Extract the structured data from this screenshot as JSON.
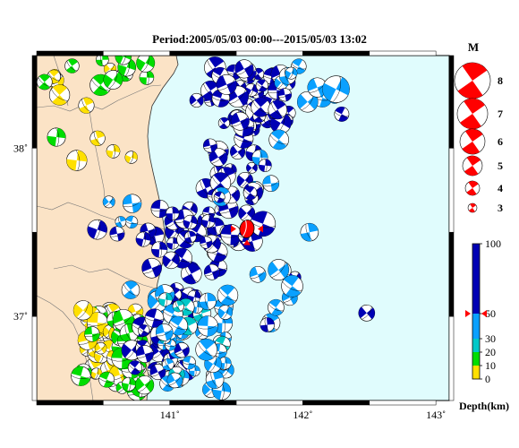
{
  "title": "Period:2005/05/03 00:00---2015/05/03 13:02",
  "axes": {
    "x_ticks": [
      {
        "label": "141˚",
        "lon": 141.0
      },
      {
        "label": "142˚",
        "lon": 142.0
      },
      {
        "label": "143˚",
        "lon": 143.0
      }
    ],
    "y_ticks": [
      {
        "label": "38˚",
        "lat": 38.0
      },
      {
        "label": "37˚",
        "lat": 37.0
      }
    ]
  },
  "map_extent": {
    "lon_min": 140.0,
    "lon_max": 143.1,
    "lat_min": 36.5,
    "lat_max": 38.55
  },
  "colors": {
    "land": "#fbe3c6",
    "sea": "#e0fcfd",
    "depth_0_10": "#ffe000",
    "depth_10_20": "#00dd00",
    "depth_20_30": "#00c8c8",
    "depth_30_50": "#0aa0ff",
    "depth_50_100": "#0000b4",
    "highlight": "#ff0000"
  },
  "magnitude_legend": {
    "title": "M",
    "items": [
      {
        "label": "8"
      },
      {
        "label": "7"
      },
      {
        "label": "6"
      },
      {
        "label": "5"
      },
      {
        "label": "4"
      },
      {
        "label": "3"
      }
    ]
  },
  "depth_legend": {
    "title": "Depth(km)",
    "ticks": [
      {
        "label": "100",
        "value": 100
      },
      {
        "label": "50",
        "value": 50
      },
      {
        "label": "30",
        "value": 30
      },
      {
        "label": "20",
        "value": 20
      },
      {
        "label": "10",
        "value": 10
      },
      {
        "label": "0",
        "value": 0
      }
    ],
    "marker_value": 50
  },
  "highlight_event": {
    "lon": 141.58,
    "lat": 37.52,
    "depth": 50
  }
}
